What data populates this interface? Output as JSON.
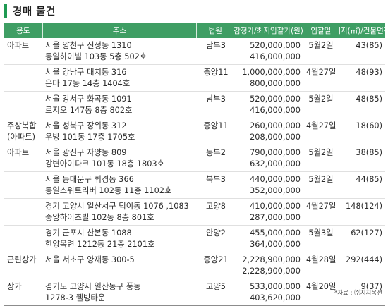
{
  "title": "경매 물건",
  "header": [
    "용도",
    "주소",
    "법원",
    "감정가/최저입찰가(원)",
    "입찰일",
    "대지(㎡)/건물면적"
  ],
  "rows": [
    {
      "type": "아파트",
      "addr1": "서울 양천구 신정동 1310",
      "addr2": "동일하이빌 103동 5층 502호",
      "court": "남부3",
      "price1": "520,000,000",
      "price2": "416,000,000",
      "date": "5월2일",
      "area": "43(85)",
      "sep": false
    },
    {
      "type": "",
      "addr1": "서울 강남구 대치동 316",
      "addr2": "은마 17동 14층 1404호",
      "court": "중앙11",
      "price1": "1,000,000,000",
      "price2": "800,000,000",
      "date": "4월27일",
      "area": "48(93)",
      "sep": false
    },
    {
      "type": "",
      "addr1": "서울 강서구 화곡동 1091",
      "addr2": "르지오 147동 8층 802호",
      "court": "남부3",
      "price1": "520,000,000",
      "price2": "416,000,000",
      "date": "5월2일",
      "area": "48(85)",
      "sep": true
    },
    {
      "type": "주상복합",
      "type2": "(아파트)",
      "addr1": "서울 성북구 장위동 312",
      "addr2": "우방 101동 17층 1705호",
      "court": "중앙11",
      "price1": "260,000,000",
      "price2": "208,000,000",
      "date": "4월27일",
      "area": "18(60)",
      "sep": true
    },
    {
      "type": "아파트",
      "addr1": "서울 광진구 자양동 809",
      "addr2": "강변아이파크 101동 18층 1803호",
      "court": "동부2",
      "price1": "790,000,000",
      "price2": "632,000,000",
      "date": "5월2일",
      "area": "38(85)",
      "sep": false
    },
    {
      "type": "",
      "addr1": "서울 동대문구 휘경동 366",
      "addr2": "동일스위트리버 102동 11층 1102호",
      "court": "북부3",
      "price1": "440,000,000",
      "price2": "352,000,000",
      "date": "5월2일",
      "area": "44(85)",
      "sep": false
    },
    {
      "type": "",
      "addr1": "경기 고양시 일산서구 덕이동 1076 ,1083",
      "addr2": "중앙하이츠빌 102동 8층 801호",
      "court": "고양8",
      "price1": "410,000,000",
      "price2": "287,000,000",
      "date": "4월27일",
      "area": "148(124)",
      "sep": false
    },
    {
      "type": "",
      "addr1": "경기 군포시 산본동 1088",
      "addr2": "한양목련 1212동 21층 2101호",
      "court": "안양2",
      "price1": "455,000,000",
      "price2": "364,000,000",
      "date": "5월3일",
      "area": "62(127)",
      "sep": true
    },
    {
      "type": "근린상가",
      "addr1": "서울 서초구 양재동 300-5",
      "addr2": "",
      "court": "중앙21",
      "price1": "2,228,900,000",
      "price2": "2,228,900,000",
      "date": "4월28일",
      "area": "292(444)",
      "sep": true
    },
    {
      "type": "상가",
      "addr1": "경기도 고양시 일산동구 풍동",
      "addr2": "1278-3 웰빙타운",
      "court": "고양5",
      "price1": "533,000,000",
      "price2": "403,620,000",
      "date": "4월20일",
      "area": "9(37)",
      "sep": true
    }
  ],
  "footnote": "*자료 : ㈜지지옥션"
}
